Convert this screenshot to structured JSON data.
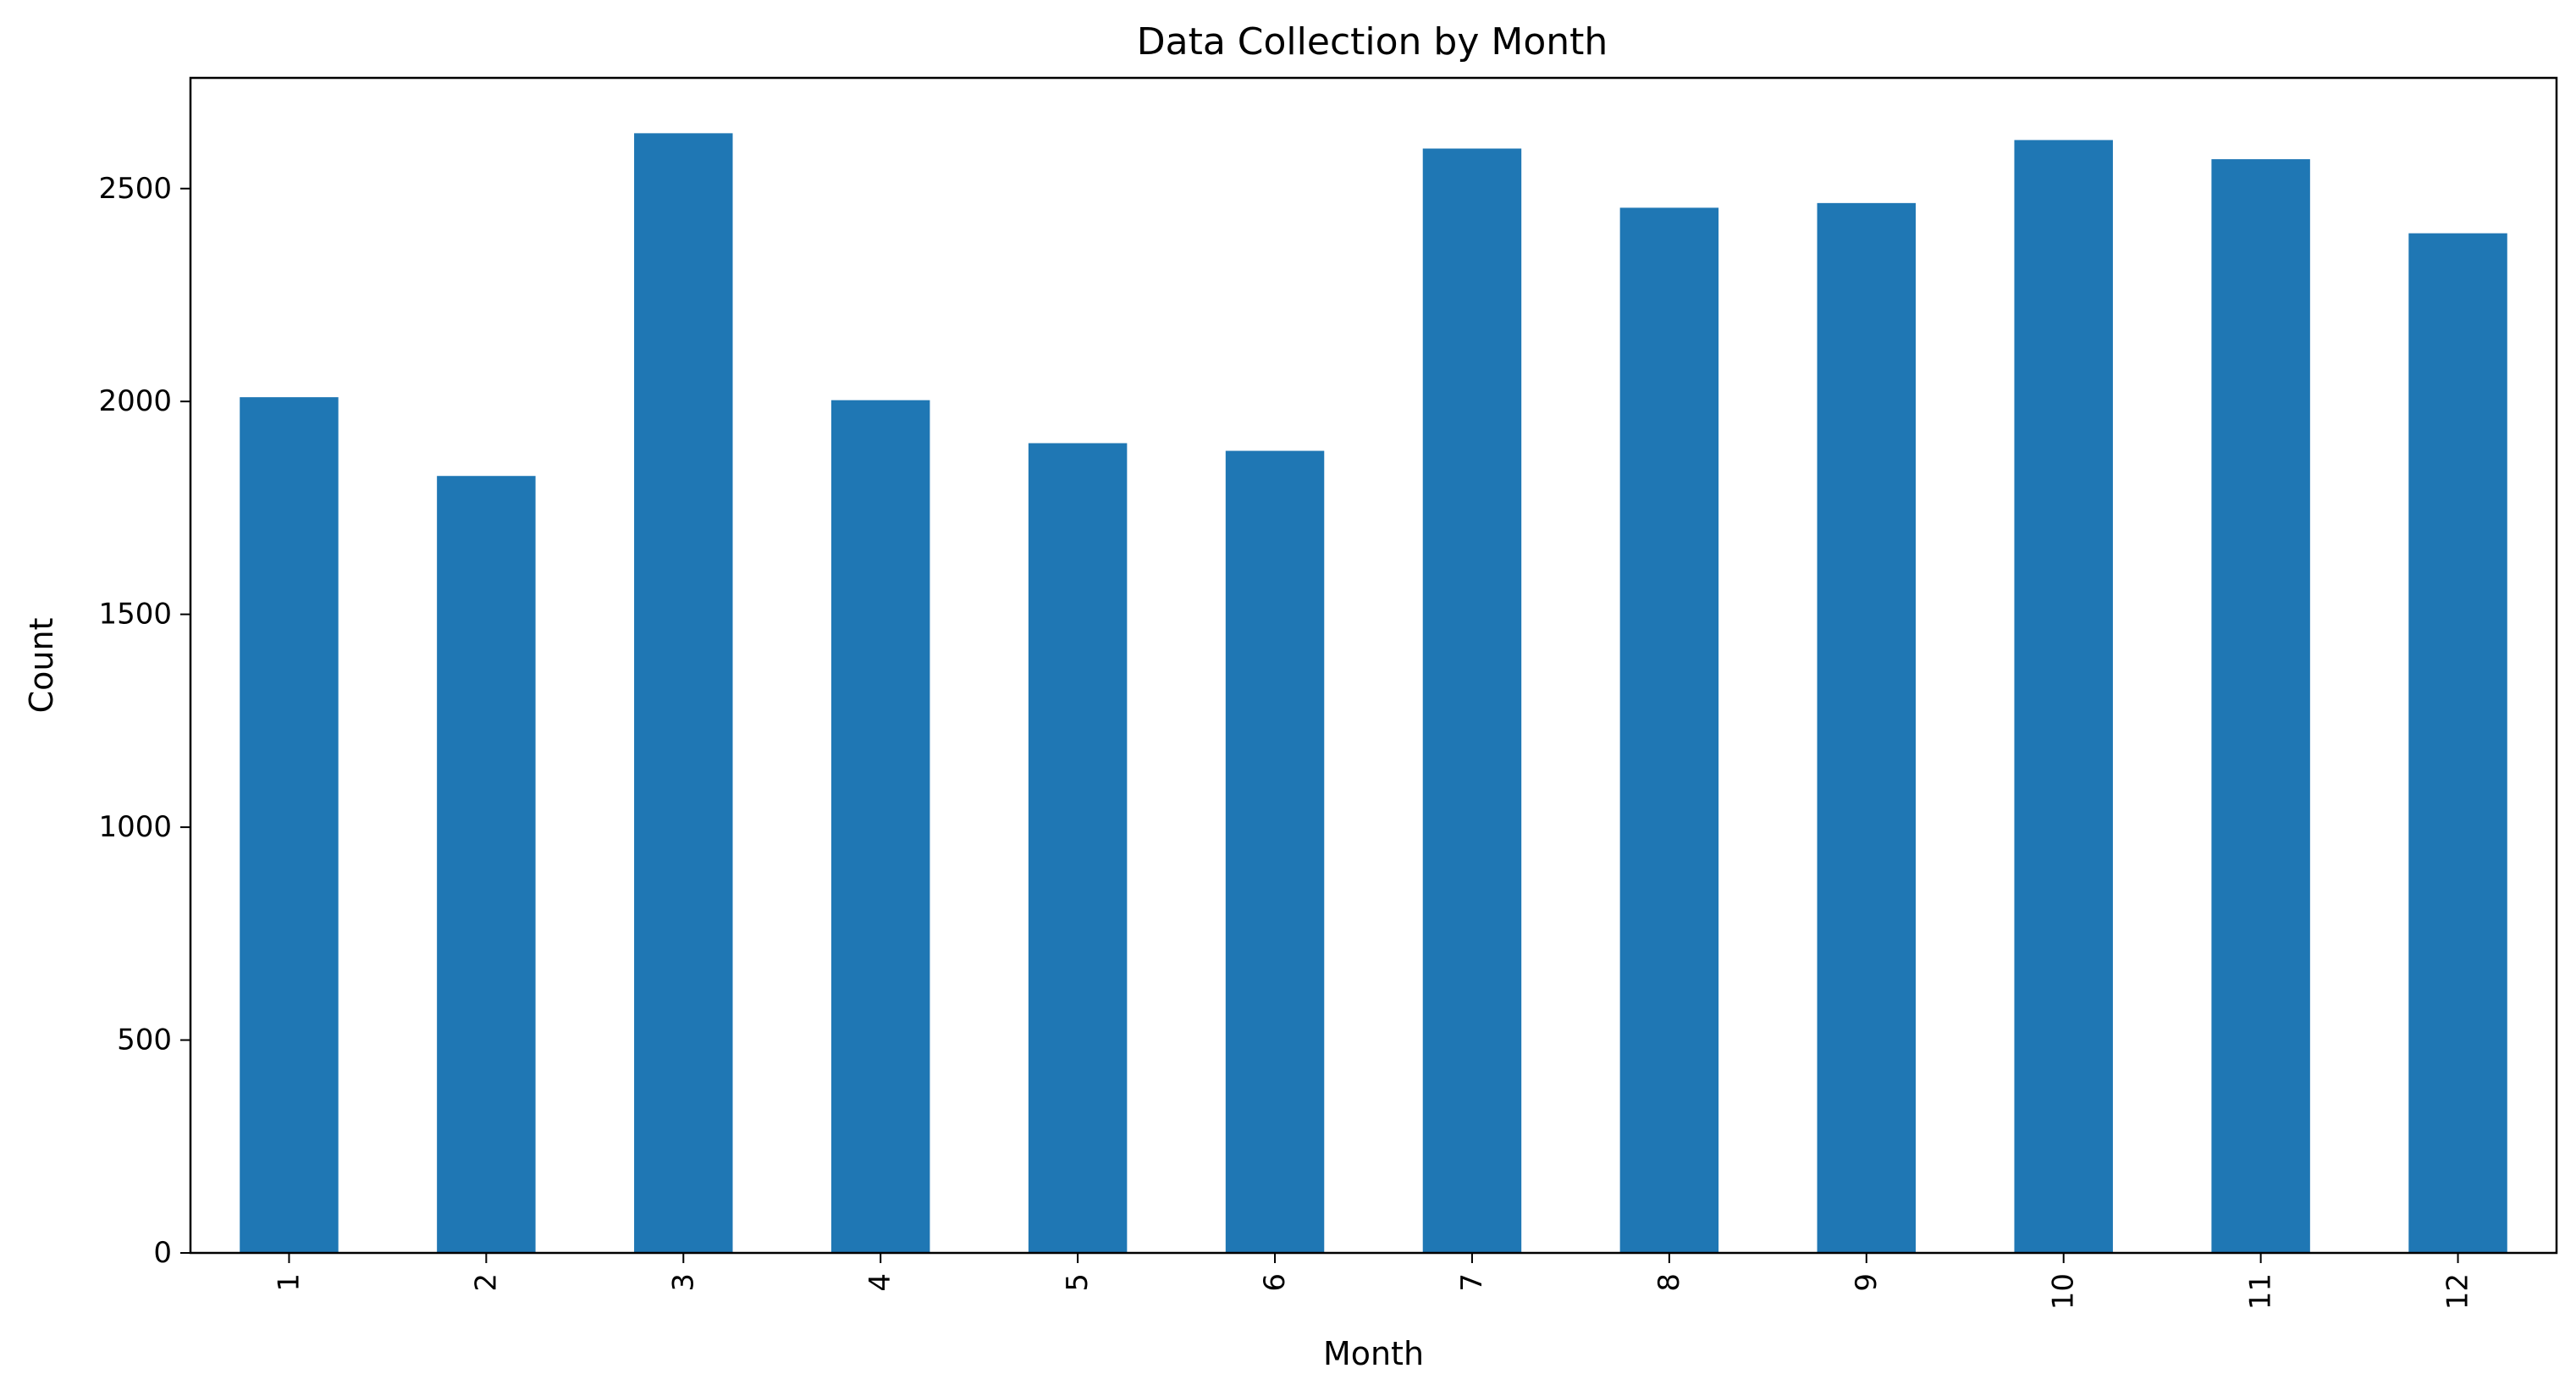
{
  "chart_data": {
    "type": "bar",
    "title": "Data Collection by Month",
    "xlabel": "Month",
    "ylabel": "Count",
    "categories": [
      "1",
      "2",
      "3",
      "4",
      "5",
      "6",
      "7",
      "8",
      "9",
      "10",
      "11",
      "12"
    ],
    "values": [
      2010,
      1825,
      2630,
      2003,
      1902,
      1884,
      2594,
      2455,
      2466,
      2614,
      2569,
      2395
    ],
    "ylim": [
      0,
      2760
    ],
    "yticks": [
      0,
      500,
      1000,
      1500,
      2000,
      2500
    ],
    "grid": false,
    "legend": "none",
    "bar_color": "#1f77b4"
  }
}
